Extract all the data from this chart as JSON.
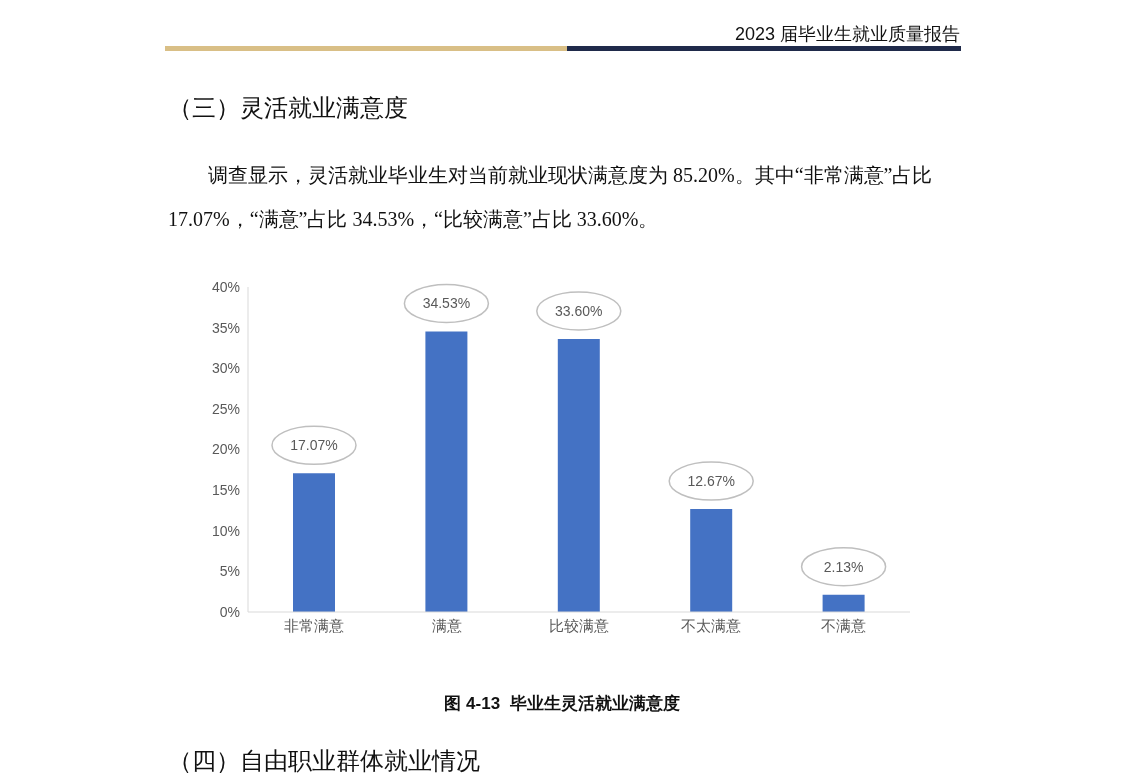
{
  "chart_data": {
    "type": "bar",
    "title": "图 4-13  毕业生灵活就业满意度",
    "categories": [
      "非常满意",
      "满意",
      "比较满意",
      "不太满意",
      "不满意"
    ],
    "values": [
      17.07,
      34.53,
      33.6,
      12.67,
      2.13
    ],
    "value_labels": [
      "17.07%",
      "34.53%",
      "33.60%",
      "12.67%",
      "2.13%"
    ],
    "color": "#4472c4",
    "ylim": [
      0,
      40
    ],
    "yticks": [
      {
        "value": 0,
        "label": "0%"
      },
      {
        "value": 5,
        "label": "5%"
      },
      {
        "value": 10,
        "label": "10%"
      },
      {
        "value": 15,
        "label": "15%"
      },
      {
        "value": 20,
        "label": "20%"
      },
      {
        "value": 25,
        "label": "25%"
      },
      {
        "value": 30,
        "label": "30%"
      },
      {
        "value": 35,
        "label": "35%"
      },
      {
        "value": 40,
        "label": "40%"
      }
    ],
    "grid": false,
    "legend": false,
    "annotations": [
      "2023 届毕业生就业质量报告",
      "（三）灵活就业满意度",
      "调查显示，灵活就业毕业生对当前就业现状满意度为 85.20%。其中“非常满意”占比 17.07%，“满意”占比 34.53%，“比较满意”占比 33.60%。",
      "（四）自由职业群体就业情况"
    ]
  }
}
